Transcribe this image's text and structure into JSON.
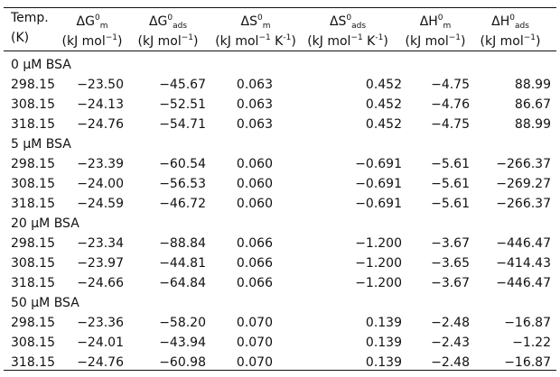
{
  "table": {
    "header": [
      {
        "title": [
          {
            "text": "Temp."
          }
        ],
        "unit": [
          {
            "text": "(K)"
          }
        ]
      },
      {
        "title": [
          {
            "text": "ΔG"
          },
          {
            "text": "0",
            "style": "sup"
          },
          {
            "text": "m",
            "style": "sub"
          }
        ],
        "unit": [
          {
            "text": "(kJ mol"
          },
          {
            "text": "−1",
            "style": "sup"
          },
          {
            "text": ")"
          }
        ]
      },
      {
        "title": [
          {
            "text": "ΔG"
          },
          {
            "text": "0",
            "style": "sup"
          },
          {
            "text": "ads",
            "style": "sub"
          }
        ],
        "unit": [
          {
            "text": "(kJ mol"
          },
          {
            "text": "−1",
            "style": "sup"
          },
          {
            "text": ")"
          }
        ]
      },
      {
        "title": [
          {
            "text": "ΔS"
          },
          {
            "text": "0",
            "style": "sup"
          },
          {
            "text": "m",
            "style": "sub"
          }
        ],
        "unit": [
          {
            "text": "(kJ mol"
          },
          {
            "text": "−1",
            "style": "sup"
          },
          {
            "text": " K"
          },
          {
            "text": "-1",
            "style": "sup"
          },
          {
            "text": ")"
          }
        ]
      },
      {
        "title": [
          {
            "text": "ΔS"
          },
          {
            "text": "0",
            "style": "sup"
          },
          {
            "text": "ads",
            "style": "sub"
          }
        ],
        "unit": [
          {
            "text": "(kJ mol"
          },
          {
            "text": "−1",
            "style": "sup"
          },
          {
            "text": " K"
          },
          {
            "text": "-1",
            "style": "sup"
          },
          {
            "text": ")"
          }
        ]
      },
      {
        "title": [
          {
            "text": "ΔH"
          },
          {
            "text": "0",
            "style": "sup"
          },
          {
            "text": "m",
            "style": "sub"
          }
        ],
        "unit": [
          {
            "text": "(kJ mol"
          },
          {
            "text": "−1",
            "style": "sup"
          },
          {
            "text": ")"
          }
        ]
      },
      {
        "title": [
          {
            "text": "ΔH"
          },
          {
            "text": "0",
            "style": "sup"
          },
          {
            "text": "ads",
            "style": "sub"
          }
        ],
        "unit": [
          {
            "text": "(kJ mol"
          },
          {
            "text": "−1",
            "style": "sup"
          },
          {
            "text": ")"
          }
        ]
      }
    ],
    "groups": [
      {
        "label": "0 μM BSA",
        "rows": [
          [
            "298.15",
            "−23.50",
            "−45.67",
            "0.063",
            "0.452",
            "−4.75",
            "88.99"
          ],
          [
            "308.15",
            "−24.13",
            "−52.51",
            "0.063",
            "0.452",
            "−4.76",
            "86.67"
          ],
          [
            "318.15",
            "−24.76",
            "−54.71",
            "0.063",
            "0.452",
            "−4.75",
            "88.99"
          ]
        ]
      },
      {
        "label": "5 μM BSA",
        "rows": [
          [
            "298.15",
            "−23.39",
            "−60.54",
            "0.060",
            "−0.691",
            "−5.61",
            "−266.37"
          ],
          [
            "308.15",
            "−24.00",
            "−56.53",
            "0.060",
            "−0.691",
            "−5.61",
            "−269.27"
          ],
          [
            "318.15",
            "−24.59",
            "−46.72",
            "0.060",
            "−0.691",
            "−5.61",
            "−266.37"
          ]
        ]
      },
      {
        "label": "20 μM BSA",
        "rows": [
          [
            "298.15",
            "−23.34",
            "−88.84",
            "0.066",
            "−1.200",
            "−3.67",
            "−446.47"
          ],
          [
            "308.15",
            "−23.97",
            "−44.81",
            "0.066",
            "−1.200",
            "−3.65",
            "−414.43"
          ],
          [
            "318.15",
            "−24.66",
            "−64.84",
            "0.066",
            "−1.200",
            "−3.67",
            "−446.47"
          ]
        ]
      },
      {
        "label": "50 μM BSA",
        "rows": [
          [
            "298.15",
            "−23.36",
            "−58.20",
            "0.070",
            "0.139",
            "−2.48",
            "−16.87"
          ],
          [
            "308.15",
            "−24.01",
            "−43.94",
            "0.070",
            "0.139",
            "−2.43",
            "−1.22"
          ],
          [
            "318.15",
            "−24.76",
            "−60.98",
            "0.070",
            "0.139",
            "−2.48",
            "−16.87"
          ]
        ]
      }
    ]
  }
}
